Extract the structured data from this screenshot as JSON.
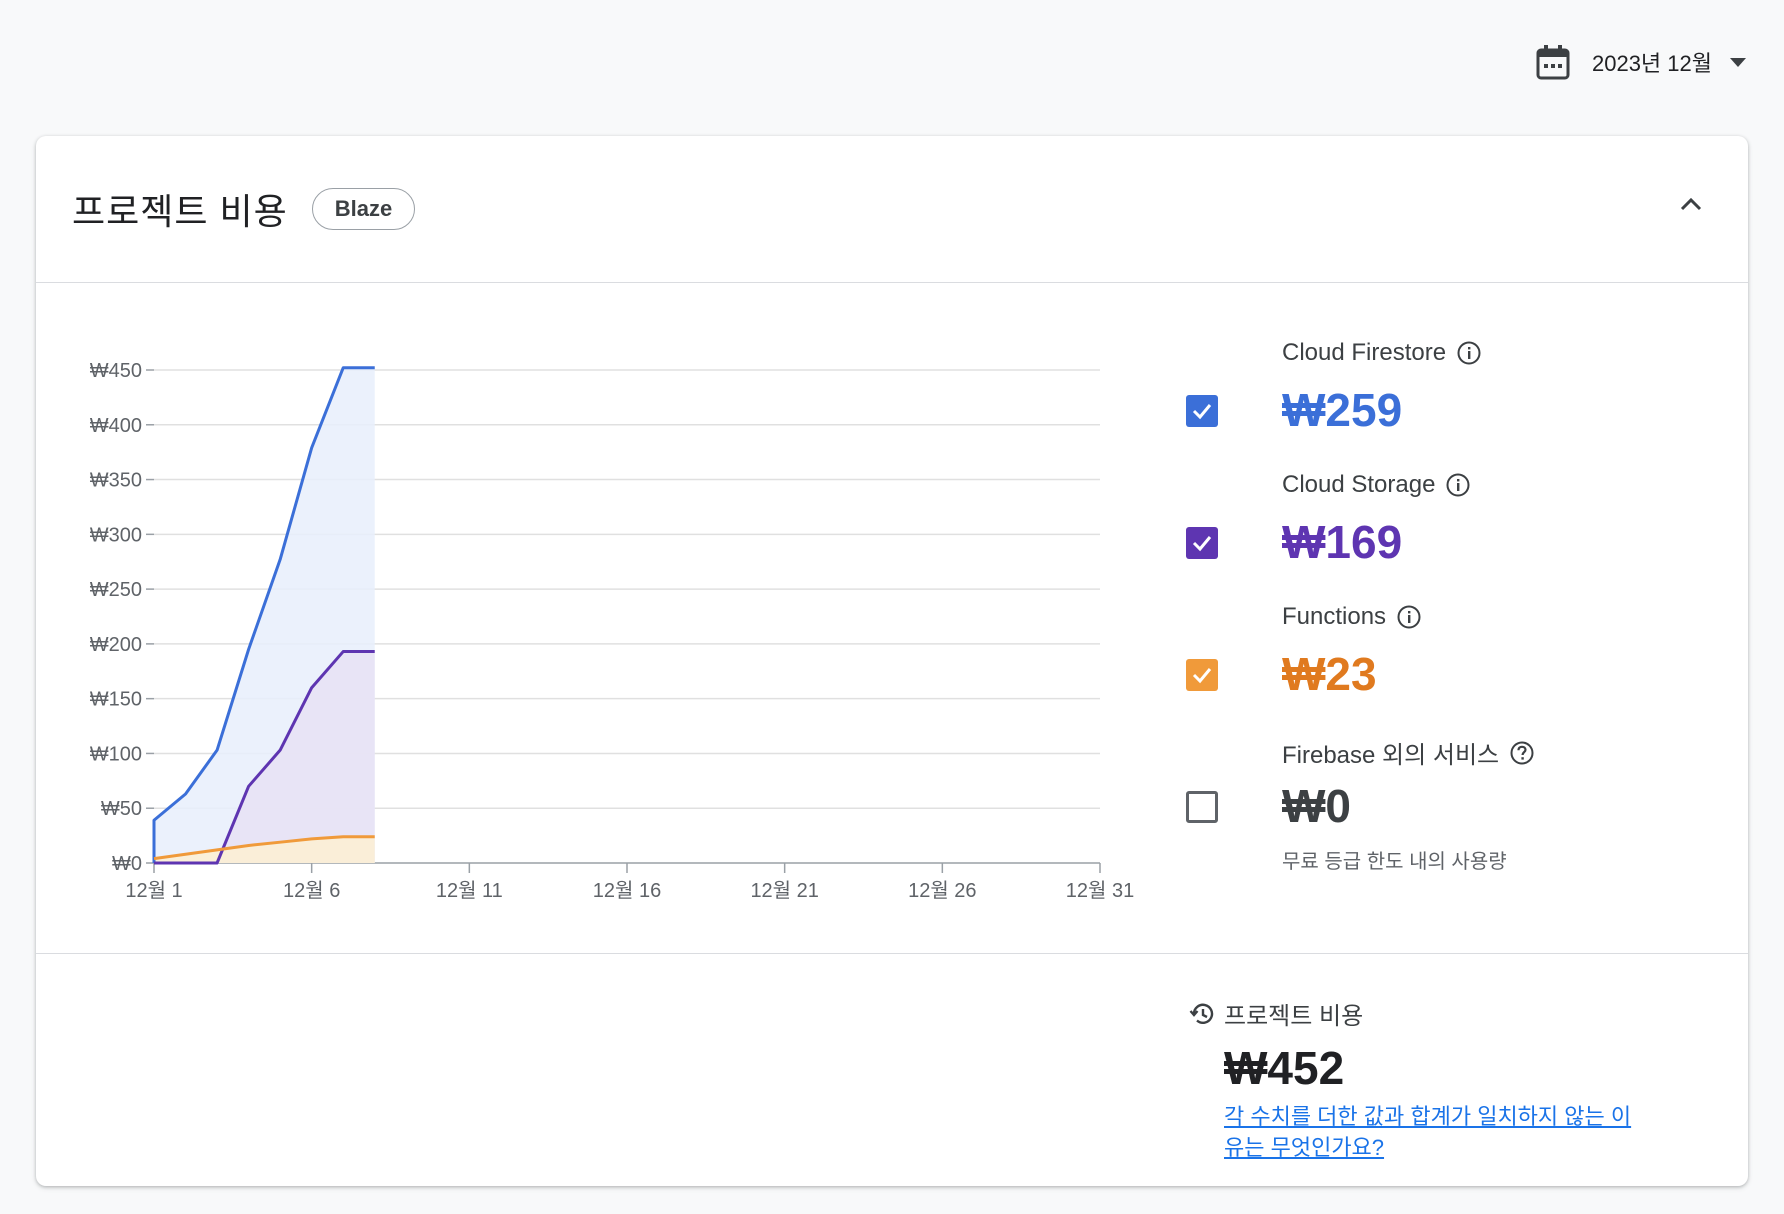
{
  "header": {
    "calendar_icon": "calendar-icon",
    "date_selector": "2023년 12월"
  },
  "card": {
    "title": "프로젝트 비용",
    "plan_badge": "Blaze",
    "collapse_icon": "chevron-up-icon"
  },
  "legend": {
    "items": [
      {
        "name": "Cloud Firestore",
        "value": "₩259",
        "checked": true,
        "color": "#3b6fd8",
        "help_icon": "info-icon"
      },
      {
        "name": "Cloud Storage",
        "value": "₩169",
        "checked": true,
        "color": "#5e35b1",
        "help_icon": "info-icon"
      },
      {
        "name": "Functions",
        "value": "₩23",
        "checked": true,
        "color": "#e07a1f",
        "box_color": "#f09a3a",
        "help_icon": "info-icon"
      },
      {
        "name": "Firebase 외의 서비스",
        "value": "₩0",
        "checked": false,
        "color": "#3c4043",
        "help_icon": "help-icon",
        "subtitle": "무료 등급 한도 내의 사용량"
      }
    ]
  },
  "total": {
    "history_icon": "history-icon",
    "label": "프로젝트 비용",
    "value": "₩452",
    "link": "각 수치를 더한 값과 합계가 일치하지 않는 이유는 무엇인가요?"
  },
  "chart_data": {
    "type": "area",
    "ylim": [
      0,
      450
    ],
    "y_ticks": [
      0,
      50,
      100,
      150,
      200,
      250,
      300,
      350,
      400,
      450
    ],
    "y_tick_labels": [
      "₩0",
      "₩50",
      "₩100",
      "₩150",
      "₩200",
      "₩250",
      "₩300",
      "₩350",
      "₩400",
      "₩450"
    ],
    "xlim": [
      1,
      31
    ],
    "x_ticks": [
      1,
      6,
      11,
      16,
      21,
      26,
      31
    ],
    "x_tick_labels": [
      "12월 1",
      "12월 6",
      "12월 11",
      "12월 16",
      "12월 21",
      "12월 26",
      "12월 31"
    ],
    "grid": true,
    "series": [
      {
        "name": "Cloud Firestore",
        "x": [
          1,
          1,
          2,
          3,
          4,
          5,
          6,
          7,
          8
        ],
        "values": [
          0,
          39,
          63,
          103,
          195,
          277,
          379,
          452,
          452
        ]
      },
      {
        "name": "Cloud Storage",
        "x": [
          1,
          2,
          3,
          4,
          5,
          6,
          7,
          8
        ],
        "values": [
          0,
          0,
          0,
          70,
          103,
          160,
          193,
          193
        ]
      },
      {
        "name": "Functions",
        "x": [
          1,
          2,
          3,
          4,
          5,
          6,
          7,
          8
        ],
        "values": [
          4,
          8,
          12,
          16,
          19,
          22,
          24,
          24
        ]
      }
    ]
  }
}
